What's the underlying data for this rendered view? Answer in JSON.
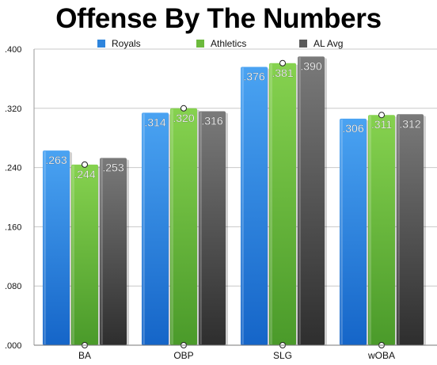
{
  "colors": {
    "royals": "#2e85dd",
    "athletics": "#6cba3c",
    "al_avg": "#5a5a5a"
  },
  "chart_data": {
    "type": "bar",
    "title": "Offense By The Numbers",
    "categories": [
      "BA",
      "OBP",
      "SLG",
      "wOBA"
    ],
    "series": [
      {
        "name": "Royals",
        "values": [
          0.263,
          0.314,
          0.376,
          0.306
        ],
        "labels": [
          ".263",
          ".314",
          ".376",
          ".306"
        ],
        "color": "#2e85dd"
      },
      {
        "name": "Athletics",
        "values": [
          0.244,
          0.32,
          0.381,
          0.311
        ],
        "labels": [
          ".244",
          ".320",
          ".381",
          ".311"
        ],
        "color": "#6cba3c"
      },
      {
        "name": "AL Avg",
        "values": [
          0.253,
          0.316,
          0.39,
          0.312
        ],
        "labels": [
          ".253",
          ".316",
          ".390",
          ".312"
        ],
        "color": "#5a5a5a"
      }
    ],
    "yticks": [
      ".000",
      ".080",
      ".160",
      ".240",
      ".320",
      ".400"
    ],
    "ylim": [
      0,
      0.4
    ],
    "grid": true,
    "legend": "top"
  }
}
